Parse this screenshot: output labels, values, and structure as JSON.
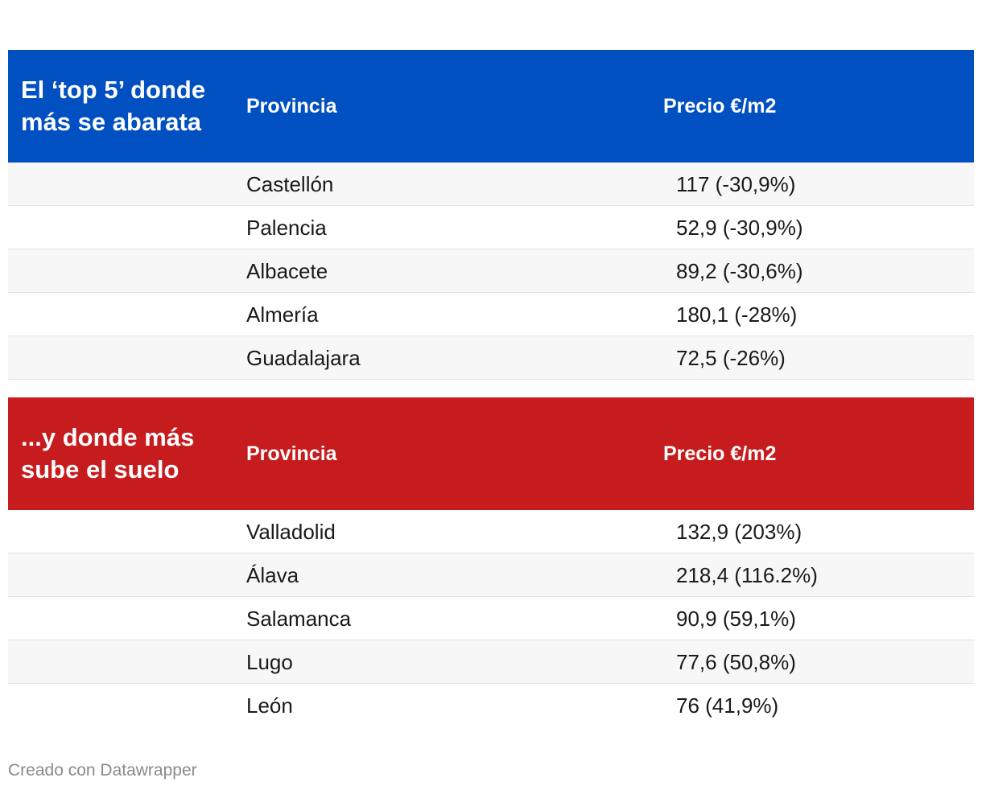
{
  "tables": [
    {
      "title": "El ‘top 5’ donde más se abarata",
      "header_color": "#0050C1",
      "columns": [
        "Provincia",
        "Precio €/m2"
      ],
      "rows": [
        {
          "province": "Castellón",
          "price": "117 (-30,9%)"
        },
        {
          "province": "Palencia",
          "price": "52,9 (-30,9%)"
        },
        {
          "province": "Albacete",
          "price": "89,2 (-30,6%)"
        },
        {
          "province": "Almería",
          "price": "180,1 (-28%)"
        },
        {
          "province": "Guadalajara",
          "price": "72,5 (-26%)"
        }
      ]
    },
    {
      "title": "...y donde más sube el suelo",
      "header_color": "#C71C1E",
      "columns": [
        "Provincia",
        "Precio €/m2"
      ],
      "rows": [
        {
          "province": "Valladolid",
          "price": "132,9 (203%)"
        },
        {
          "province": "Álava",
          "price": "218,4 (116.2%)"
        },
        {
          "province": "Salamanca",
          "price": "90,9 (59,1%)"
        },
        {
          "province": "Lugo",
          "price": "77,6 (50,8%)"
        },
        {
          "province": "León",
          "price": "76 (41,9%)"
        }
      ]
    }
  ],
  "chart_data": [
    {
      "type": "table",
      "title": "El ‘top 5’ donde más se abarata",
      "columns": [
        "Provincia",
        "Precio €/m2"
      ],
      "rows": [
        [
          "Castellón",
          "117 (-30,9%)"
        ],
        [
          "Palencia",
          "52,9 (-30,9%)"
        ],
        [
          "Albacete",
          "89,2 (-30,6%)"
        ],
        [
          "Almería",
          "180,1 (-28%)"
        ],
        [
          "Guadalajara",
          "72,5 (-26%)"
        ]
      ]
    },
    {
      "type": "table",
      "title": "...y donde más sube el suelo",
      "columns": [
        "Provincia",
        "Precio €/m2"
      ],
      "rows": [
        [
          "Valladolid",
          "132,9 (203%)"
        ],
        [
          "Álava",
          "218,4 (116.2%)"
        ],
        [
          "Salamanca",
          "90,9 (59,1%)"
        ],
        [
          "Lugo",
          "77,6 (50,8%)"
        ],
        [
          "León",
          "76 (41,9%)"
        ]
      ]
    }
  ],
  "footer": "Creado con Datawrapper"
}
